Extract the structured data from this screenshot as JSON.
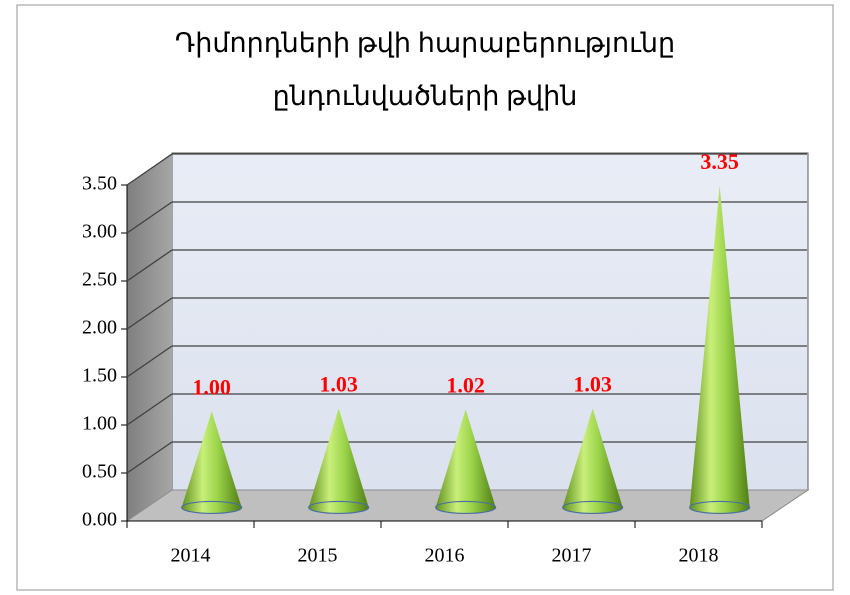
{
  "chart_data": {
    "type": "cone",
    "title": [
      "Դիմորդների թվի հարաբերությունը",
      "ընդունվածների թվին"
    ],
    "categories": [
      "2014",
      "2015",
      "2016",
      "2017",
      "2018"
    ],
    "values": [
      1.0,
      1.03,
      1.02,
      1.03,
      3.35
    ],
    "value_labels": [
      "1.00",
      "1.03",
      "1.02",
      "1.03",
      "3.35"
    ],
    "color": "#8cc63f",
    "label_color": "#ff0000",
    "ylim": [
      0,
      3.5
    ],
    "yticks": [
      {
        "value": 0,
        "label": "0.00"
      },
      {
        "value": 0.5,
        "label": "0.50"
      },
      {
        "value": 1,
        "label": "1.00"
      },
      {
        "value": 1.5,
        "label": "1.50"
      },
      {
        "value": 2,
        "label": "2.00"
      },
      {
        "value": 2.5,
        "label": "2.50"
      },
      {
        "value": 3,
        "label": "3.00"
      },
      {
        "value": 3.5,
        "label": "3.50"
      }
    ],
    "grid": true
  }
}
